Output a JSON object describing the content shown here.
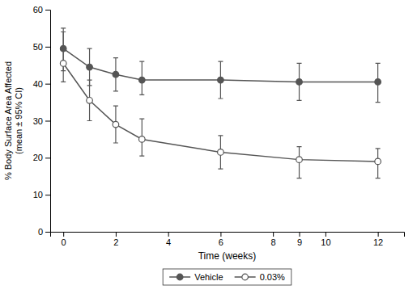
{
  "chart_data": {
    "type": "line",
    "x_label": "Time (weeks)",
    "y_label": "% Body Surface Area Affected\n(mean ± 95% CI)",
    "x": [
      0,
      1,
      2,
      3,
      6,
      9,
      12
    ],
    "xlim": [
      -0.5,
      13
    ],
    "xticks": [
      0,
      2,
      4,
      6,
      8,
      9,
      10,
      12
    ],
    "ylim": [
      0,
      60
    ],
    "yticks": [
      0,
      10,
      20,
      30,
      40,
      50,
      60
    ],
    "grid": false,
    "legend": "bottom",
    "series": [
      {
        "name": "Vehicle",
        "color": "#555555",
        "marker": "circle",
        "line_style": "solid",
        "values": [
          49.5,
          44.5,
          42.5,
          41.0,
          41.0,
          40.5,
          40.5
        ],
        "error_lower": [
          6.0,
          5.0,
          4.5,
          4.0,
          5.0,
          5.0,
          5.5
        ],
        "error_upper": [
          5.5,
          5.0,
          4.5,
          5.0,
          5.0,
          5.0,
          5.0
        ]
      },
      {
        "name": "0.03%",
        "color": "#555555",
        "marker": "open-circle",
        "line_style": "solid",
        "values": [
          45.5,
          35.5,
          29.0,
          25.0,
          21.5,
          19.5,
          19.0
        ],
        "error_lower": [
          5.0,
          5.5,
          5.0,
          4.5,
          4.5,
          5.0,
          4.5
        ],
        "error_upper": [
          8.5,
          5.5,
          5.0,
          5.5,
          4.5,
          3.5,
          3.5
        ]
      }
    ]
  }
}
